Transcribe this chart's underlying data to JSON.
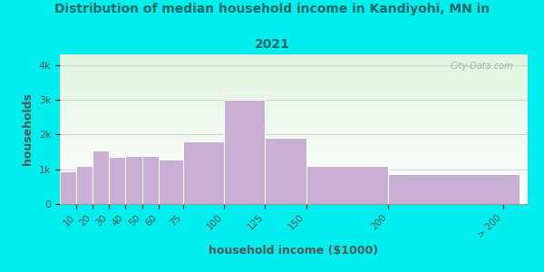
{
  "title_line1": "Distribution of median household income in Kandiyohi, MN in",
  "title_line2": "2021",
  "xlabel": "household income ($1000)",
  "ylabel": "households",
  "bar_color": "#c9afd4",
  "bg_color": "#00eeee",
  "title_color": "#006666",
  "axis_label_color": "#555555",
  "tick_color": "#555555",
  "yticks": [
    0,
    1000,
    2000,
    3000,
    4000
  ],
  "ytick_labels": [
    "0",
    "1k",
    "2k",
    "3k",
    "4k"
  ],
  "ylim": [
    0,
    4300
  ],
  "watermark": "City-Data.com",
  "bar_lefts": [
    0,
    10,
    20,
    30,
    40,
    50,
    60,
    75,
    100,
    125,
    150,
    200
  ],
  "bar_rights": [
    10,
    20,
    30,
    40,
    50,
    60,
    75,
    100,
    125,
    150,
    200,
    280
  ],
  "bar_heights": [
    950,
    1100,
    1550,
    1350,
    1380,
    1380,
    1280,
    1800,
    3000,
    1900,
    1100,
    850
  ],
  "xtick_positions": [
    10,
    20,
    30,
    40,
    50,
    60,
    75,
    100,
    125,
    150,
    200,
    270
  ],
  "xtick_labels": [
    "10",
    "20",
    "30",
    "40",
    "50",
    "60",
    "75",
    "100",
    "125",
    "150",
    "200",
    "> 200"
  ]
}
